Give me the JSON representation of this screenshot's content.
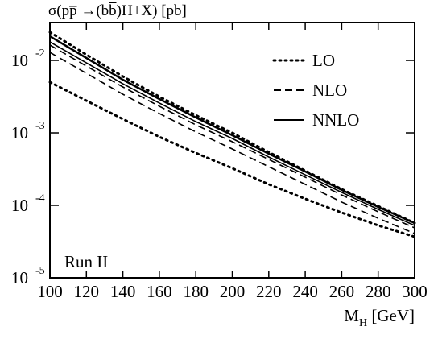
{
  "chart_data": {
    "type": "line",
    "title": "σ(pp̅ →(bb̅)H+X) [pb]",
    "xlabel": [
      "M",
      "H",
      " [GeV]"
    ],
    "annotation": "Run II",
    "log_y": true,
    "legend": "upper-right",
    "x": [
      100,
      120,
      140,
      160,
      180,
      200,
      220,
      240,
      260,
      280,
      300
    ],
    "xlim": [
      100,
      300
    ],
    "xticks": [
      100,
      120,
      140,
      160,
      180,
      200,
      220,
      240,
      260,
      280,
      300
    ],
    "ylim": [
      1e-05,
      0.0333
    ],
    "yticks": [
      {
        "value": 1e-05,
        "label": "10",
        "power": "-5"
      },
      {
        "value": 0.0001,
        "label": "10",
        "power": "-4"
      },
      {
        "value": 0.001,
        "label": "10",
        "power": "-3"
      },
      {
        "value": 0.01,
        "label": "10",
        "power": "-2"
      }
    ],
    "series": [
      {
        "name": "LO",
        "color": "#000000",
        "dash": "dotted",
        "values": [
          0.0245,
          0.012,
          0.006,
          0.00316,
          0.00175,
          0.001,
          0.000541,
          0.000301,
          0.000167,
          9.75e-05,
          5.7e-05
        ],
        "lower": [
          0.00501,
          0.00278,
          0.00155,
          0.00088,
          0.000528,
          0.000325,
          0.000195,
          0.000123,
          7.94e-05,
          5.28e-05,
          3.69e-05
        ]
      },
      {
        "name": "NLO",
        "color": "#000000",
        "dash": "dashed",
        "values": [
          0.0163,
          0.00836,
          0.0043,
          0.00233,
          0.00129,
          0.000755,
          0.00043,
          0.000245,
          0.000139,
          8.15e-05,
          4.89e-05
        ],
        "lower": [
          0.0129,
          0.00664,
          0.00341,
          0.00185,
          0.00103,
          0.0006,
          0.000341,
          0.000195,
          0.000111,
          6.64e-05,
          4.08e-05
        ]
      },
      {
        "name": "NNLO",
        "color": "#000000",
        "dash": "solid",
        "values": [
          0.0215,
          0.0108,
          0.00541,
          0.00293,
          0.00163,
          0.000926,
          0.000515,
          0.000293,
          0.000163,
          9.51e-05,
          5.7e-05
        ],
        "lower": [
          0.018,
          0.00926,
          0.00476,
          0.00258,
          0.00143,
          0.000836,
          0.000464,
          0.000264,
          0.000151,
          8.8e-05,
          5.28e-05
        ]
      }
    ]
  }
}
